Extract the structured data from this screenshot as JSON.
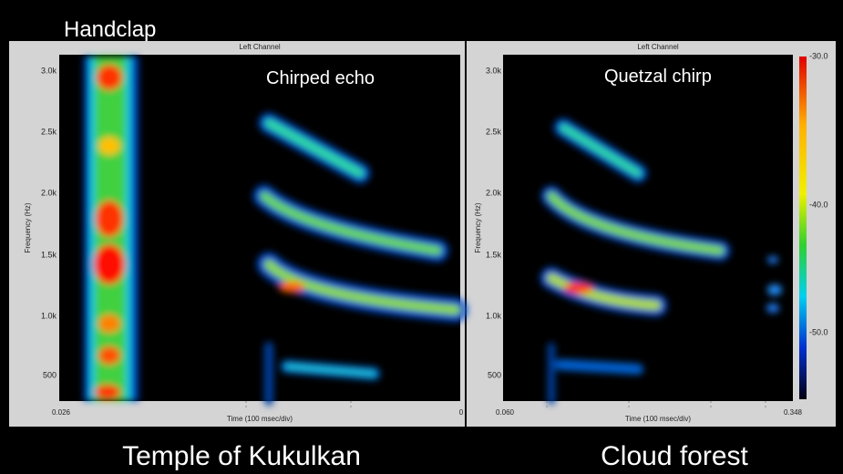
{
  "title": "Handclap",
  "panels": [
    {
      "channel": "Left Channel",
      "annotation": "Chirped echo",
      "y_axis_label": "Frequency (Hz)",
      "y_ticks": [
        "3.0k",
        "2.5k",
        "2.0k",
        "1.5k",
        "1.0k",
        "500"
      ],
      "x_axis_label": "Time (100 msec/div)",
      "x_start": "0.026",
      "x_end": "0",
      "caption": "Temple of Kukulkan"
    },
    {
      "channel": "Left Channel",
      "annotation": "Quetzal chirp",
      "y_axis_label": "Frequency (Hz)",
      "y_ticks": [
        "3.0k",
        "2.5k",
        "2.0k",
        "1.5k",
        "1.0k",
        "500"
      ],
      "x_axis_label": "Time (100 msec/div)",
      "x_start": "0.060",
      "x_end": "0.348",
      "colorbar_ticks": [
        "-30.0",
        "-40.0",
        "-50.0"
      ],
      "caption": "Cloud forest"
    }
  ]
}
